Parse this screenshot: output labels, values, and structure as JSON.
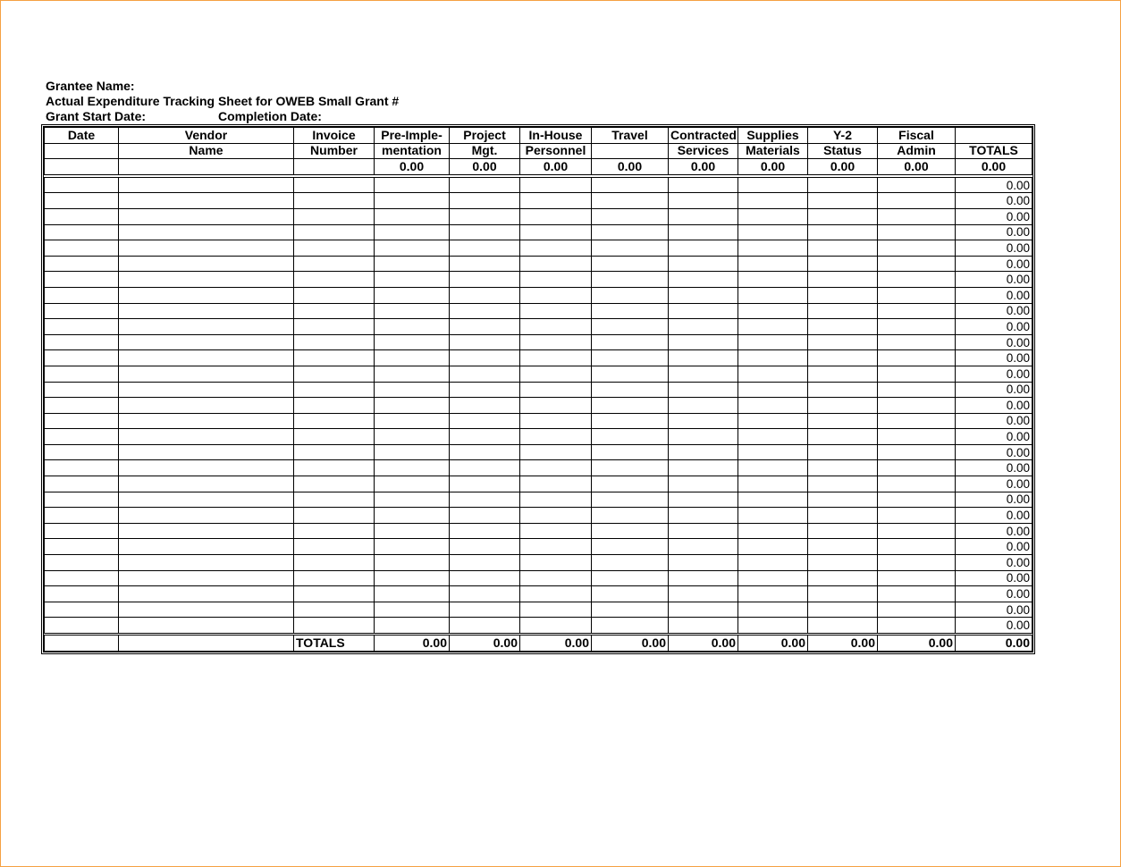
{
  "header": {
    "grantee_name": "Grantee Name:",
    "title": "Actual Expenditure Tracking Sheet for OWEB Small Grant #",
    "start_date": "Grant Start Date:",
    "completion_date": "Completion Date:"
  },
  "columns": [
    {
      "line1": "Date",
      "line2": "",
      "total": ""
    },
    {
      "line1": "Vendor",
      "line2": "Name",
      "total": ""
    },
    {
      "line1": "Invoice",
      "line2": "Number",
      "total": ""
    },
    {
      "line1": "Pre-Imple-",
      "line2": "mentation",
      "total": "0.00"
    },
    {
      "line1": "Project",
      "line2": "Mgt.",
      "total": "0.00"
    },
    {
      "line1": "In-House",
      "line2": "Personnel",
      "total": "0.00"
    },
    {
      "line1": "Travel",
      "line2": "",
      "total": "0.00"
    },
    {
      "line1": "Contracted",
      "line2": "Services",
      "total": "0.00"
    },
    {
      "line1": "Supplies",
      "line2": "Materials",
      "total": "0.00"
    },
    {
      "line1": "Y-2",
      "line2": "Status",
      "total": "0.00"
    },
    {
      "line1": "Fiscal",
      "line2": "Admin",
      "total": "0.00"
    },
    {
      "line1": "",
      "line2": "TOTALS",
      "total": "0.00"
    }
  ],
  "rows": [
    "0.00",
    "0.00",
    "0.00",
    "0.00",
    "0.00",
    "0.00",
    "0.00",
    "0.00",
    "0.00",
    "0.00",
    "0.00",
    "0.00",
    "0.00",
    "0.00",
    "0.00",
    "0.00",
    "0.00",
    "0.00",
    "0.00",
    "0.00",
    "0.00",
    "0.00",
    "0.00",
    "0.00",
    "0.00",
    "0.00",
    "0.00",
    "0.00",
    "0.00"
  ],
  "totals_row": {
    "label": "TOTALS",
    "values": [
      "0.00",
      "0.00",
      "0.00",
      "0.00",
      "0.00",
      "0.00",
      "0.00",
      "0.00",
      "0.00"
    ]
  }
}
